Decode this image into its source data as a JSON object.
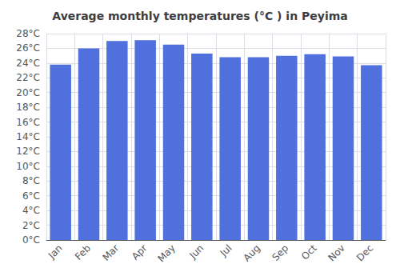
{
  "chart_data": {
    "type": "bar",
    "title": "Average monthly temperatures (°C ) in Peyima",
    "categories": [
      "Jan",
      "Feb",
      "Mar",
      "Apr",
      "May",
      "Jun",
      "Jul",
      "Aug",
      "Sep",
      "Oct",
      "Nov",
      "Dec"
    ],
    "values": [
      23.8,
      26.0,
      27.0,
      27.1,
      26.5,
      25.3,
      24.8,
      24.8,
      25.0,
      25.2,
      24.9,
      23.7
    ],
    "ylim": [
      0,
      28
    ],
    "yticks": [
      {
        "value": 0,
        "label": "0°C"
      },
      {
        "value": 2,
        "label": "2°C"
      },
      {
        "value": 4,
        "label": "4°C"
      },
      {
        "value": 6,
        "label": "6°C"
      },
      {
        "value": 8,
        "label": "8°C"
      },
      {
        "value": 10,
        "label": "10°C"
      },
      {
        "value": 12,
        "label": "12°C"
      },
      {
        "value": 14,
        "label": "14°C"
      },
      {
        "value": 16,
        "label": "16°C"
      },
      {
        "value": 18,
        "label": "18°C"
      },
      {
        "value": 20,
        "label": "20°C"
      },
      {
        "value": 22,
        "label": "22°C"
      },
      {
        "value": 24,
        "label": "24°C"
      },
      {
        "value": 26,
        "label": "26°C"
      },
      {
        "value": 28,
        "label": "28°C"
      }
    ],
    "grid": true
  }
}
